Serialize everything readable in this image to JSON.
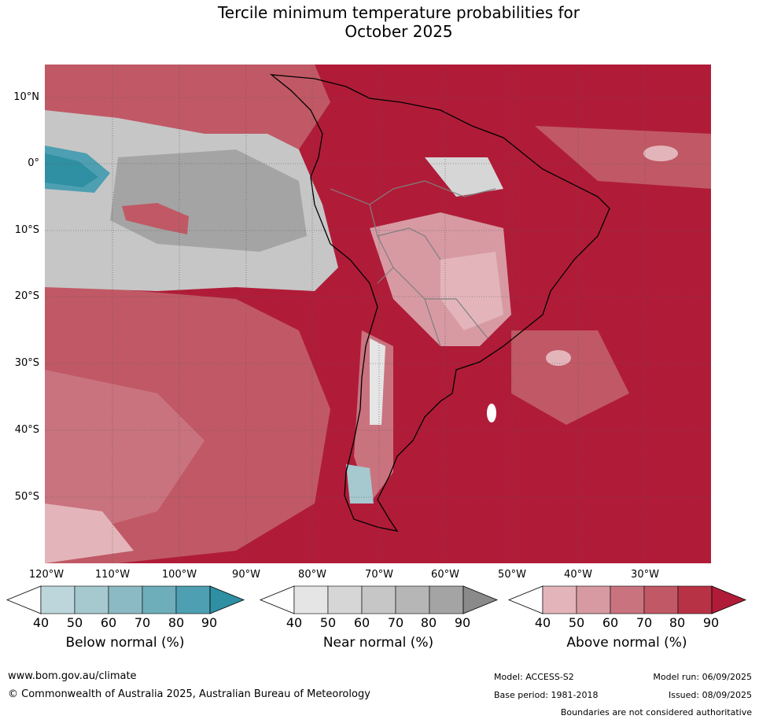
{
  "title_line1": "Tercile minimum temperature probabilities for",
  "title_line2": "October 2025",
  "lat_labels": [
    "10°N",
    "0°",
    "10°S",
    "20°S",
    "30°S",
    "40°S",
    "50°S"
  ],
  "lon_labels": [
    "120°W",
    "110°W",
    "100°W",
    "90°W",
    "80°W",
    "70°W",
    "60°W",
    "50°W",
    "40°W",
    "30°W"
  ],
  "colorbars": [
    {
      "title": "Below normal (%)",
      "ticks": [
        "40",
        "50",
        "60",
        "70",
        "80",
        "90"
      ],
      "colors": [
        "#bcd6dc",
        "#a6c8cf",
        "#8cbac4",
        "#6eaebb",
        "#4d9fb1",
        "#2f8fa3"
      ]
    },
    {
      "title": "Near normal (%)",
      "ticks": [
        "40",
        "50",
        "60",
        "70",
        "80",
        "90"
      ],
      "colors": [
        "#e5e5e5",
        "#d6d6d6",
        "#c6c6c6",
        "#b6b6b6",
        "#a4a4a4",
        "#8a8a8a"
      ]
    },
    {
      "title": "Above normal (%)",
      "ticks": [
        "40",
        "50",
        "60",
        "70",
        "80",
        "90"
      ],
      "colors": [
        "#e3b5bb",
        "#d79aa3",
        "#c9737f",
        "#c05965",
        "#b83245",
        "#b01c38"
      ]
    }
  ],
  "footer": {
    "website": "www.bom.gov.au/climate",
    "copyright": "© Commonwealth of Australia 2025, Australian Bureau of Meteorology",
    "model": "Model: ACCESS-S2",
    "model_run": "Model run: 06/09/2025",
    "base_period": "Base period: 1981-2018",
    "issued": "Issued: 08/09/2025",
    "disclaimer": "Boundaries are not considered authoritative"
  }
}
